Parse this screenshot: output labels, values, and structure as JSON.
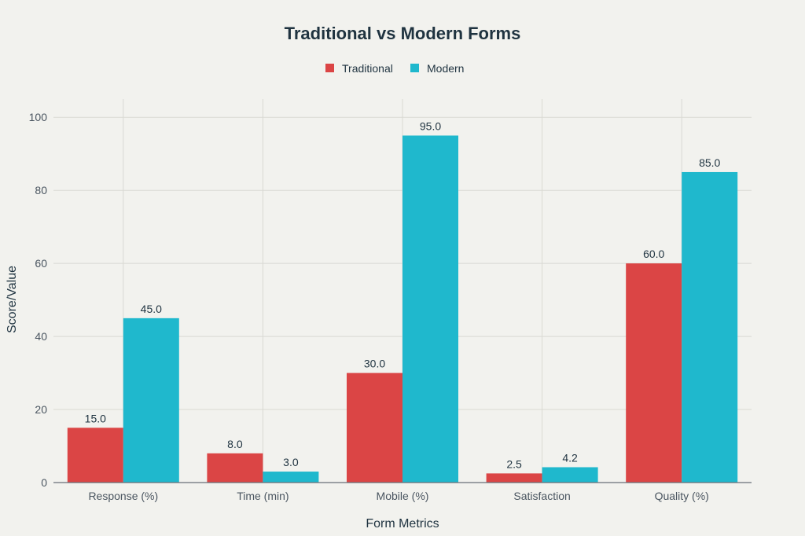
{
  "chart_data": {
    "type": "bar",
    "title": "Traditional vs Modern Forms",
    "xlabel": "Form Metrics",
    "ylabel": "Score/Value",
    "categories": [
      "Response (%)",
      "Time (min)",
      "Mobile (%)",
      "Satisfaction",
      "Quality (%)"
    ],
    "series": [
      {
        "name": "Traditional",
        "color": "#db4545",
        "values": [
          15.0,
          8.0,
          30.0,
          2.5,
          60.0
        ],
        "labels": [
          "15.0",
          "8.0",
          "30.0",
          "2.5",
          "60.0"
        ]
      },
      {
        "name": "Modern",
        "color": "#1fb8cd",
        "values": [
          45.0,
          3.0,
          95.0,
          4.2,
          85.0
        ],
        "labels": [
          "45.0",
          "3.0",
          "95.0",
          "4.2",
          "85.0"
        ]
      }
    ],
    "ylim": [
      0,
      105
    ],
    "yticks": [
      0,
      20,
      40,
      60,
      80,
      100
    ],
    "grid": true,
    "legend_position": "top-center"
  }
}
